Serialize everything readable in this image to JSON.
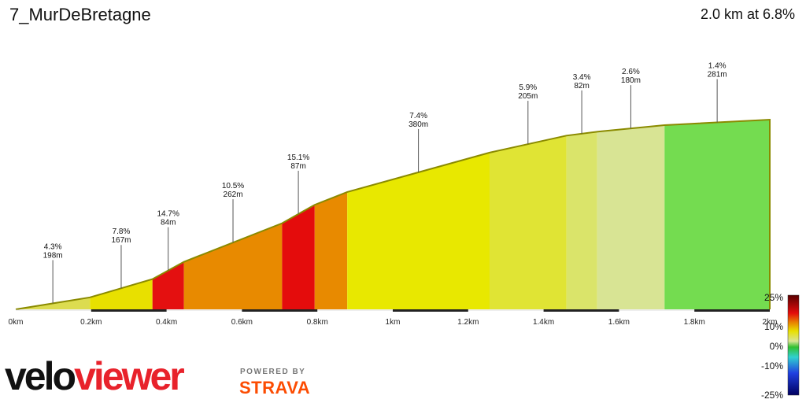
{
  "header": {
    "title": "7_MurDeBretagne",
    "summary": "2.0 km at 6.8%"
  },
  "branding": {
    "logo_text": "veloviewer",
    "powered_by": "POWERED BY",
    "strava": "STRAVA"
  },
  "colors": {
    "strava_orange": "#fc4c02",
    "velo_red": "#e8222b",
    "outline": "#8a8a00"
  },
  "chart_data": {
    "type": "area",
    "title": "7_MurDeBretagne",
    "xlabel": "",
    "ylabel": "",
    "x_unit": "km",
    "xlim": [
      0,
      2.0
    ],
    "x_ticks": [
      {
        "value": 0,
        "label": "0km"
      },
      {
        "value": 0.2,
        "label": "0.2km"
      },
      {
        "value": 0.4,
        "label": "0.4km"
      },
      {
        "value": 0.6,
        "label": "0.6km"
      },
      {
        "value": 0.8,
        "label": "0.8km"
      },
      {
        "value": 1.0,
        "label": "1km"
      },
      {
        "value": 1.2,
        "label": "1.2km"
      },
      {
        "value": 1.4,
        "label": "1.4km"
      },
      {
        "value": 1.6,
        "label": "1.6km"
      },
      {
        "value": 1.8,
        "label": "1.8km"
      },
      {
        "value": 2.0,
        "label": "2km"
      }
    ],
    "segments": [
      {
        "gradient_label": "4.3%",
        "length_label": "198m",
        "gradient": 4.3,
        "length_m": 198,
        "color": "#dcdc50"
      },
      {
        "gradient_label": "7.8%",
        "length_label": "167m",
        "gradient": 7.8,
        "length_m": 167,
        "color": "#e8e000"
      },
      {
        "gradient_label": "14.7%",
        "length_label": "84m",
        "gradient": 14.7,
        "length_m": 84,
        "color": "#e41010"
      },
      {
        "gradient_label": "10.5%",
        "length_label": "262m",
        "gradient": 10.5,
        "length_m": 262,
        "color": "#e88a00"
      },
      {
        "gradient_label": "15.1%",
        "length_label": "87m",
        "gradient": 15.1,
        "length_m": 87,
        "color": "#e40c0c"
      },
      {
        "gradient_label": "",
        "length_label": "",
        "gradient": 10.5,
        "length_m": 87,
        "color": "#e88a00"
      },
      {
        "gradient_label": "7.4%",
        "length_label": "380m",
        "gradient": 7.4,
        "length_m": 380,
        "color": "#e8e800"
      },
      {
        "gradient_label": "5.9%",
        "length_label": "205m",
        "gradient": 5.9,
        "length_m": 205,
        "color": "#e0e434"
      },
      {
        "gradient_label": "3.4%",
        "length_label": "82m",
        "gradient": 3.4,
        "length_m": 82,
        "color": "#dae46a"
      },
      {
        "gradient_label": "2.6%",
        "length_label": "180m",
        "gradient": 2.6,
        "length_m": 180,
        "color": "#d8e494"
      },
      {
        "gradient_label": "1.4%",
        "length_label": "281m",
        "gradient": 1.4,
        "length_m": 281,
        "color": "#74dc50"
      }
    ],
    "color_scale": {
      "labels": [
        "25%",
        "10%",
        "0%",
        "-10%",
        "-25%"
      ],
      "values": [
        25,
        10,
        0,
        -10,
        -25
      ]
    }
  }
}
